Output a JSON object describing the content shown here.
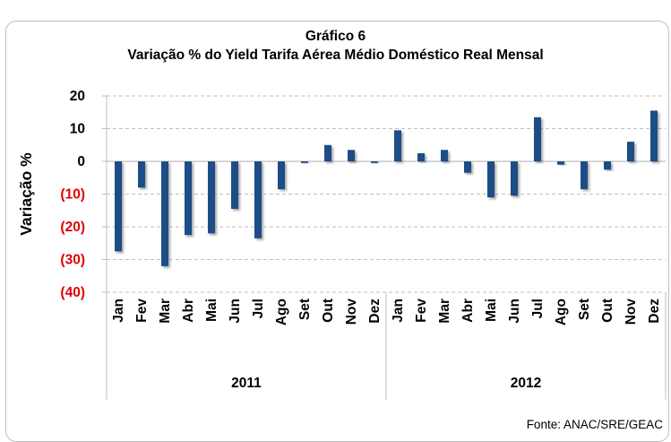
{
  "chart_data": {
    "type": "bar",
    "title": "Gráfico 6",
    "subtitle": "Variação % do Yield Tarifa Aérea Médio Doméstico Real Mensal",
    "xlabel": "",
    "ylabel": "Variação %",
    "ylim": [
      -40,
      20
    ],
    "yticks": [
      20,
      10,
      0,
      -10,
      -20,
      -30,
      -40
    ],
    "ytick_labels": [
      "20",
      "10",
      "0",
      "(10)",
      "(20)",
      "(30)",
      "(40)"
    ],
    "grid": true,
    "legend": "none",
    "groups": [
      {
        "label": "2011",
        "categories": [
          "Jan",
          "Fev",
          "Mar",
          "Abr",
          "Mai",
          "Jun",
          "Jul",
          "Ago",
          "Set",
          "Out",
          "Nov",
          "Dez"
        ]
      },
      {
        "label": "2012",
        "categories": [
          "Jan",
          "Fev",
          "Mar",
          "Abr",
          "Mai",
          "Jun",
          "Jul",
          "Ago",
          "Set",
          "Out",
          "Nov",
          "Dez"
        ]
      }
    ],
    "values": [
      -27.5,
      -8,
      -32,
      -22.5,
      -22,
      -14.5,
      -23.5,
      -8.5,
      -0.5,
      5,
      3.5,
      -0.5,
      9.5,
      2.5,
      3.5,
      -3.5,
      -11,
      -10.5,
      13.5,
      -1,
      -8.5,
      -2.5,
      6,
      15.5
    ],
    "source": "Fonte: ANAC/SRE/GEAC"
  },
  "colors": {
    "bar": "#1f4e86",
    "negative_tick": "#e00000",
    "grid": "#bfbfbf"
  }
}
